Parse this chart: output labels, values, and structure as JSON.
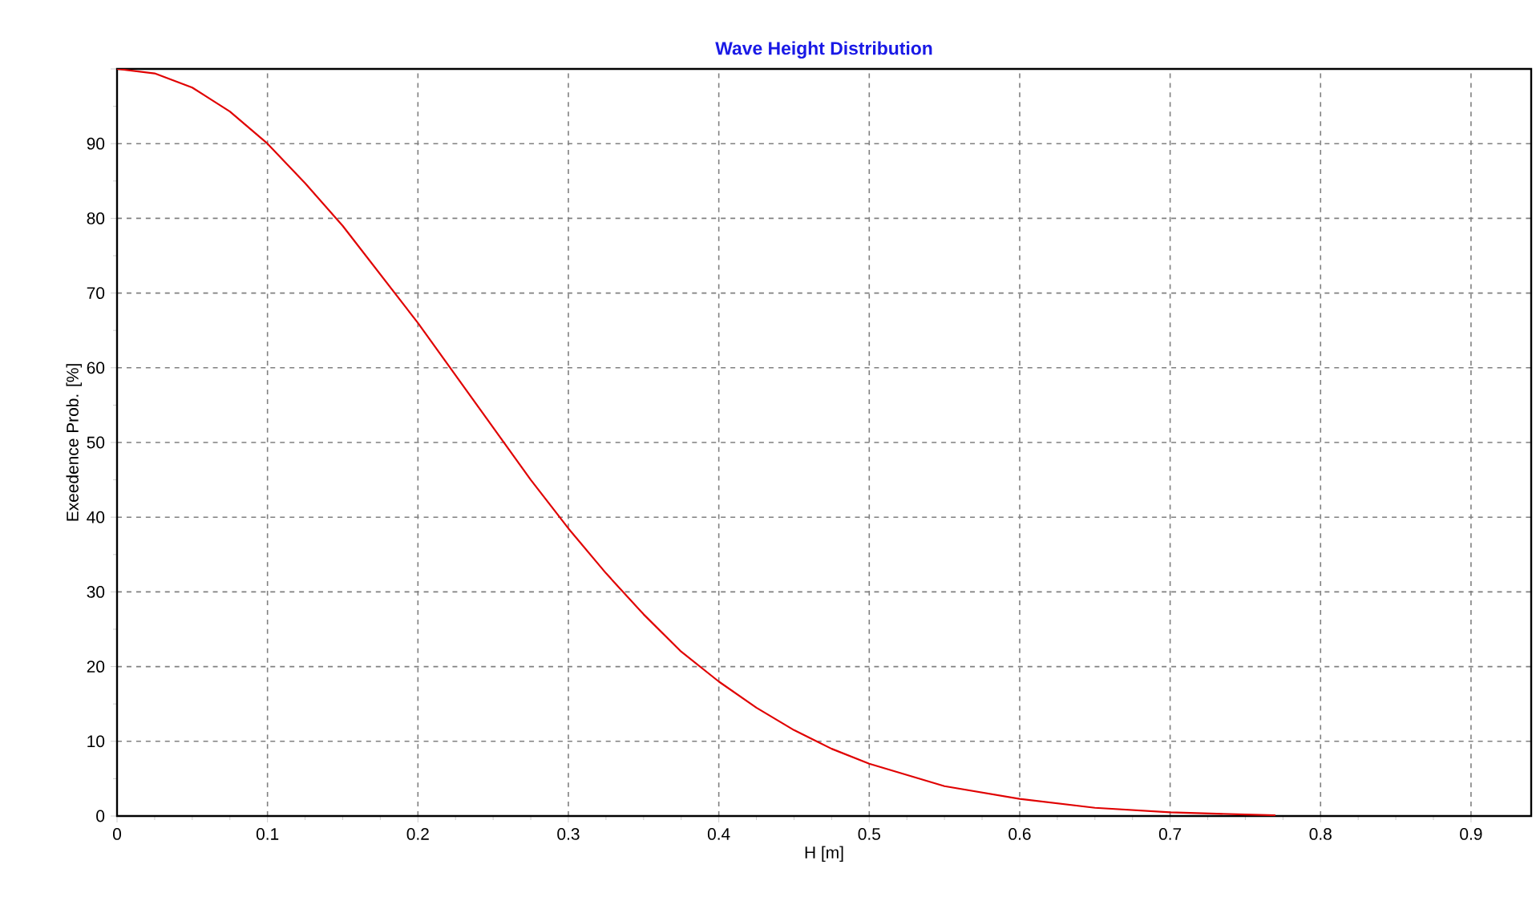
{
  "chart_data": {
    "type": "line",
    "title": "Wave Height Distribution",
    "xlabel": "H [m]",
    "ylabel": "Exeedence Prob. [%]",
    "xlim": [
      0,
      0.94
    ],
    "ylim": [
      0,
      100
    ],
    "xticks": [
      0,
      0.1,
      0.2,
      0.3,
      0.4,
      0.5,
      0.6,
      0.7,
      0.8,
      0.9
    ],
    "yticks": [
      0,
      10,
      20,
      30,
      40,
      50,
      60,
      70,
      80,
      90,
      {
        "value": 100,
        "label": null
      }
    ],
    "grid": true,
    "marker": "none",
    "line_style": "solid",
    "series": [
      {
        "color": "#e00000",
        "x": [
          0,
          0.025,
          0.05,
          0.075,
          0.1,
          0.125,
          0.15,
          0.175,
          0.2,
          0.225,
          0.25,
          0.275,
          0.3,
          0.325,
          0.35,
          0.375,
          0.4,
          0.425,
          0.45,
          0.475,
          0.5,
          0.55,
          0.6,
          0.65,
          0.7,
          0.75,
          0.77
        ],
        "values": [
          100,
          99.4,
          97.5,
          94.3,
          90,
          84.7,
          79,
          72.5,
          66,
          59,
          52,
          45,
          38.5,
          32.5,
          27,
          22,
          18,
          14.5,
          11.5,
          9,
          7,
          4,
          2.3,
          1.1,
          0.5,
          0.2,
          0.1
        ]
      }
    ]
  }
}
